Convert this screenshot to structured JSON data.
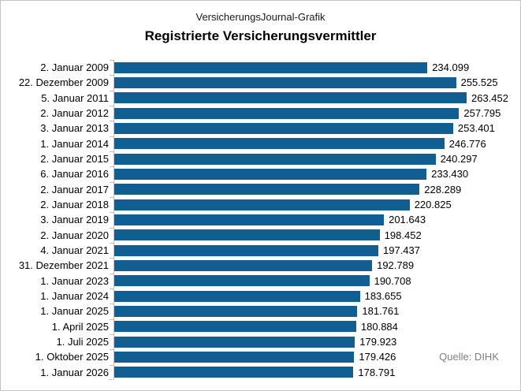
{
  "header": {
    "subtitle": "VersicherungsJournal-Grafik",
    "title": "Registrierte Versicherungsvermittler"
  },
  "source_note": "Quelle: DIHK",
  "colors": {
    "bar": "#115e92",
    "axis": "#bfbfbf",
    "source_text": "#808080"
  },
  "chart_data": {
    "type": "bar",
    "orientation": "horizontal",
    "title": "Registrierte Versicherungsvermittler",
    "xlabel": "",
    "ylabel": "",
    "xlim": [
      0,
      263452
    ],
    "grid": false,
    "legend": false,
    "categories": [
      "2. Januar 2009",
      "22. Dezember 2009",
      "5. Januar 2011",
      "2. Januar 2012",
      "3. Januar 2013",
      "1. Januar 2014",
      "2. Januar 2015",
      "6. Januar 2016",
      "2. Januar 2017",
      "2. Januar 2018",
      "3. Januar 2019",
      "2. Januar 2020",
      "4. Januar 2021",
      "31. Dezember 2021",
      "1. Januar 2023",
      "1. Januar 2024",
      "1. Januar 2025",
      "1. April 2025",
      "1. Juli 2025",
      "1. Oktober 2025",
      "1. Januar 2026"
    ],
    "values": [
      234099,
      255525,
      263452,
      257795,
      253401,
      246776,
      240297,
      233430,
      228289,
      220825,
      201643,
      198452,
      197437,
      192789,
      190708,
      183655,
      181761,
      180884,
      179923,
      179426,
      178791
    ],
    "value_labels": [
      "234.099",
      "255.525",
      "263.452",
      "257.795",
      "253.401",
      "246.776",
      "240.297",
      "233.430",
      "228.289",
      "220.825",
      "201.643",
      "198.452",
      "197.437",
      "192.789",
      "190.708",
      "183.655",
      "181.761",
      "180.884",
      "179.923",
      "179.426",
      "178.791"
    ]
  }
}
